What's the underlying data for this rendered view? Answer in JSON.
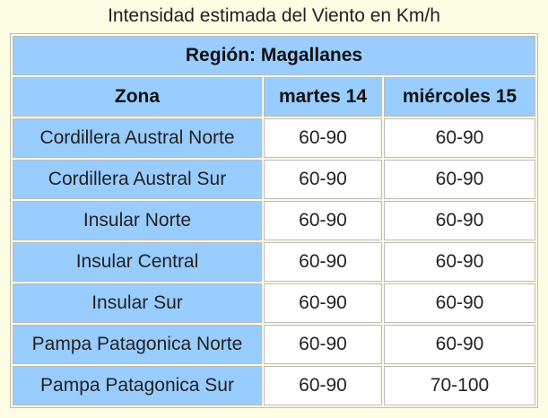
{
  "title": "Intensidad estimada del Viento en Km/h",
  "table": {
    "region": "Región: Magallanes",
    "header": [
      "Zona",
      "martes 14",
      "miércoles 15"
    ],
    "rows": [
      [
        "Cordillera Austral Norte",
        "60-90",
        "60-90"
      ],
      [
        "Cordillera Austral Sur",
        "60-90",
        "60-90"
      ],
      [
        "Insular Norte",
        "60-90",
        "60-90"
      ],
      [
        "Insular Central",
        "60-90",
        "60-90"
      ],
      [
        "Insular Sur",
        "60-90",
        "60-90"
      ],
      [
        "Pampa Patagonica Norte",
        "60-90",
        "60-90"
      ],
      [
        "Pampa Patagonica Sur",
        "60-90",
        "70-100"
      ]
    ]
  }
}
